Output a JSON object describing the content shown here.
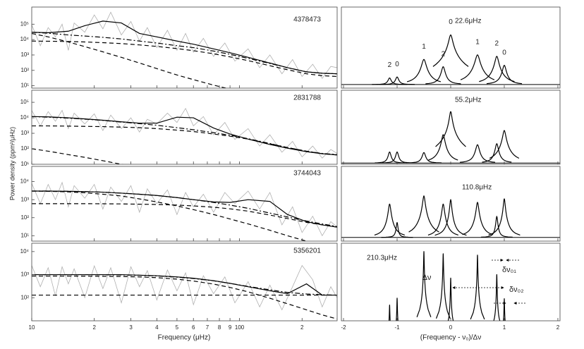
{
  "chart_data": [
    {
      "type": "line",
      "title": "4378473",
      "ylabel": "Power density (ppm²/μHz)",
      "xlim": [
        10,
        295
      ],
      "ylim": [
        7,
        1300000
      ],
      "yticks": [
        {
          "value": 10,
          "label": "10¹"
        },
        {
          "value": 100,
          "label": "10²"
        },
        {
          "value": 1000,
          "label": "10³"
        },
        {
          "value": 10000,
          "label": "10⁴"
        },
        {
          "value": 100000,
          "label": "10⁵"
        }
      ],
      "x": [
        10,
        12,
        15,
        18,
        22,
        27,
        33,
        40,
        50,
        60,
        75,
        90,
        110,
        140,
        170,
        210,
        250,
        295
      ],
      "series": [
        {
          "color": "#b0b0b0",
          "dash": "solid",
          "x": [
            10,
            11,
            12,
            13,
            14,
            15,
            16,
            18,
            20,
            22,
            24,
            27,
            30,
            33,
            36,
            40,
            45,
            50,
            55,
            60,
            67,
            75,
            85,
            95,
            110,
            125,
            140,
            160,
            180,
            200,
            225,
            250,
            275,
            295
          ],
          "values": [
            90000,
            4000,
            60000,
            15000,
            100000,
            2000,
            120000,
            30000,
            400000,
            50000,
            600000,
            20000,
            150000,
            8000,
            60000,
            3000,
            40000,
            2000,
            25000,
            1500,
            12000,
            800,
            6000,
            400,
            2500,
            150,
            1000,
            60,
            500,
            40,
            250,
            30,
            180,
            150
          ]
        },
        {
          "color": "#000000",
          "dash": "solid",
          "values": [
            30000,
            28000,
            35000,
            80000,
            160000,
            120000,
            25000,
            15000,
            8000,
            5000,
            2500,
            1400,
            700,
            300,
            150,
            80,
            65,
            60
          ]
        },
        {
          "color": "#000000",
          "dash": "dashdot",
          "values": [
            30000,
            26000,
            20000,
            17000,
            14000,
            11000,
            8000,
            6000,
            4000,
            3000,
            1800,
            1100,
            600,
            280,
            150,
            80,
            65,
            60
          ]
        },
        {
          "color": "#000000",
          "dash": "dash",
          "values": [
            25000,
            15000,
            7000,
            3500,
            1600,
            700,
            300,
            130,
            50,
            25,
            11,
            6,
            3,
            1.3,
            0.7,
            0.4,
            0.25,
            0.15
          ]
        },
        {
          "color": "#000000",
          "dash": "dash",
          "values": [
            8000,
            7800,
            7500,
            7000,
            6300,
            5500,
            4500,
            3600,
            2600,
            1900,
            1200,
            750,
            430,
            200,
            110,
            60,
            45,
            40
          ]
        }
      ]
    },
    {
      "type": "line",
      "title": "2831788",
      "xlim": [
        10,
        295
      ],
      "ylim": [
        10,
        600000
      ],
      "yticks": [
        {
          "value": 10,
          "label": "10¹"
        },
        {
          "value": 100,
          "label": "10²"
        },
        {
          "value": 1000,
          "label": "10³"
        },
        {
          "value": 10000,
          "label": "10⁴"
        },
        {
          "value": 100000,
          "label": "10⁵"
        }
      ],
      "x": [
        10,
        12,
        15,
        18,
        22,
        27,
        33,
        40,
        50,
        60,
        75,
        90,
        110,
        140,
        170,
        210,
        250,
        295
      ],
      "series": [
        {
          "color": "#b0b0b0",
          "dash": "solid",
          "x": [
            10,
            11,
            12,
            13,
            14,
            15,
            16,
            18,
            20,
            22,
            24,
            27,
            30,
            33,
            36,
            40,
            45,
            50,
            55,
            60,
            67,
            75,
            85,
            95,
            110,
            125,
            140,
            160,
            180,
            200,
            225,
            250,
            275,
            295
          ],
          "values": [
            30000,
            3000,
            25000,
            6000,
            30000,
            2000,
            20000,
            4000,
            18000,
            1500,
            15000,
            2000,
            10000,
            1200,
            8000,
            4000,
            20000,
            5000,
            40000,
            3000,
            12000,
            800,
            5000,
            400,
            2000,
            150,
            800,
            60,
            300,
            30,
            150,
            25,
            90,
            50
          ]
        },
        {
          "color": "#000000",
          "dash": "solid",
          "values": [
            12000,
            11500,
            10000,
            8500,
            7000,
            5500,
            4500,
            4500,
            11000,
            10000,
            2200,
            900,
            420,
            190,
            110,
            65,
            48,
            40
          ]
        },
        {
          "color": "#000000",
          "dash": "dashdot",
          "values": [
            12000,
            11000,
            9500,
            8200,
            6800,
            5300,
            4200,
            3300,
            2300,
            1700,
            1100,
            750,
            450,
            220,
            120,
            70,
            50,
            42
          ]
        },
        {
          "color": "#000000",
          "dash": "dash",
          "values": [
            3000,
            3000,
            2900,
            2800,
            2700,
            2500,
            2300,
            2000,
            1600,
            1300,
            900,
            650,
            420,
            210,
            120,
            70,
            48,
            40
          ]
        },
        {
          "color": "#000000",
          "dash": "dash",
          "values": [
            100,
            70,
            42,
            28,
            17,
            10,
            6,
            4,
            2.4,
            1.5,
            1,
            0.7,
            0.5,
            0.3,
            0.2,
            0.15,
            0.1,
            0.08
          ]
        }
      ]
    },
    {
      "type": "line",
      "title": "3744043",
      "xlim": [
        10,
        295
      ],
      "ylim": [
        5,
        70000
      ],
      "yticks": [
        {
          "value": 10,
          "label": "10¹"
        },
        {
          "value": 100,
          "label": "10²"
        },
        {
          "value": 1000,
          "label": "10³"
        },
        {
          "value": 10000,
          "label": "10⁴"
        }
      ],
      "x": [
        10,
        12,
        15,
        18,
        22,
        27,
        33,
        40,
        50,
        60,
        75,
        90,
        110,
        140,
        170,
        210,
        250,
        295
      ],
      "series": [
        {
          "color": "#b0b0b0",
          "dash": "solid",
          "x": [
            10,
            11,
            12,
            13,
            14,
            15,
            16,
            18,
            20,
            22,
            24,
            27,
            30,
            33,
            36,
            40,
            45,
            50,
            55,
            60,
            67,
            75,
            85,
            95,
            110,
            125,
            140,
            160,
            180,
            200,
            225,
            250,
            275,
            295
          ],
          "values": [
            8000,
            600,
            7000,
            1000,
            9000,
            400,
            6000,
            1200,
            7000,
            300,
            5000,
            800,
            6000,
            200,
            4000,
            600,
            3500,
            150,
            2500,
            400,
            2000,
            200,
            2500,
            600,
            3000,
            300,
            2500,
            40,
            400,
            15,
            120,
            10,
            60,
            30
          ]
        },
        {
          "color": "#000000",
          "dash": "solid",
          "values": [
            3000,
            3000,
            2900,
            2800,
            2600,
            2300,
            2000,
            1700,
            1300,
            1000,
            750,
            700,
            1000,
            800,
            150,
            60,
            40,
            30
          ]
        },
        {
          "color": "#000000",
          "dash": "dashdot",
          "values": [
            3000,
            3000,
            2900,
            2800,
            2600,
            2300,
            2000,
            1700,
            1300,
            1000,
            700,
            500,
            330,
            180,
            110,
            65,
            45,
            32
          ]
        },
        {
          "color": "#000000",
          "dash": "dash",
          "values": [
            600,
            600,
            600,
            600,
            590,
            580,
            560,
            540,
            500,
            450,
            380,
            310,
            230,
            140,
            90,
            55,
            40,
            30
          ]
        },
        {
          "color": "#000000",
          "dash": "dash",
          "values": [
            3000,
            2900,
            2700,
            2400,
            2000,
            1600,
            1100,
            750,
            450,
            280,
            150,
            85,
            45,
            20,
            10,
            5,
            3,
            2
          ]
        }
      ]
    },
    {
      "type": "line",
      "title": "5356201",
      "xlabel": "Frequency (μHz)",
      "xlim": [
        10,
        295
      ],
      "ylim": [
        10,
        23000
      ],
      "xticks": [
        10,
        {
          "value": 20,
          "label": "2"
        },
        {
          "value": 30,
          "label": "3"
        },
        {
          "value": 40,
          "label": "4"
        },
        {
          "value": 50,
          "label": "5"
        },
        {
          "value": 60,
          "label": "6"
        },
        {
          "value": 70,
          "label": "7"
        },
        {
          "value": 80,
          "label": "8"
        },
        {
          "value": 90,
          "label": "9"
        },
        100,
        {
          "value": 200,
          "label": "2"
        }
      ],
      "yticks": [
        {
          "value": 100,
          "label": "10²"
        },
        {
          "value": 1000,
          "label": "10³"
        },
        {
          "value": 10000,
          "label": "10⁴"
        }
      ],
      "x": [
        10,
        12,
        15,
        18,
        22,
        27,
        33,
        40,
        50,
        60,
        75,
        90,
        110,
        140,
        170,
        210,
        250,
        295
      ],
      "series": [
        {
          "color": "#b0b0b0",
          "dash": "solid",
          "x": [
            10,
            11,
            12,
            13,
            14,
            15,
            16,
            18,
            20,
            22,
            24,
            27,
            30,
            33,
            36,
            40,
            45,
            50,
            55,
            60,
            67,
            75,
            85,
            95,
            110,
            125,
            140,
            160,
            180,
            200,
            225,
            250,
            275,
            295
          ],
          "values": [
            2500,
            300,
            2000,
            120,
            2200,
            400,
            1800,
            100,
            2400,
            250,
            2000,
            60,
            2200,
            300,
            1500,
            80,
            1600,
            200,
            1200,
            50,
            900,
            150,
            800,
            60,
            500,
            40,
            350,
            30,
            300,
            2500,
            600,
            40,
            300,
            100
          ]
        },
        {
          "color": "#000000",
          "dash": "solid",
          "values": [
            1000,
            1000,
            1000,
            1000,
            1000,
            1000,
            950,
            900,
            800,
            700,
            550,
            420,
            300,
            200,
            150,
            400,
            130,
            130
          ]
        },
        {
          "color": "#000000",
          "dash": "dashdot",
          "values": [
            1000,
            1000,
            1000,
            1000,
            990,
            970,
            940,
            880,
            780,
            680,
            540,
            420,
            310,
            220,
            170,
            145,
            135,
            130
          ]
        },
        {
          "color": "#000000",
          "dash": "dash",
          "values": [
            130,
            130,
            130,
            130,
            130,
            130,
            130,
            130,
            130,
            130,
            130,
            130,
            130,
            130,
            130,
            130,
            130,
            130
          ]
        },
        {
          "color": "#000000",
          "dash": "dash",
          "values": [
            870,
            870,
            870,
            865,
            850,
            830,
            800,
            740,
            640,
            530,
            390,
            280,
            180,
            95,
            55,
            30,
            18,
            12
          ]
        }
      ]
    },
    {
      "type": "peaks",
      "title": "22.6μHz",
      "xlim": [
        -2.04,
        2.04
      ],
      "ylim": [
        7,
        1300000
      ],
      "color": "#000000",
      "background": 12,
      "x": [
        -1.14,
        -1.0,
        -0.5,
        -0.14,
        0,
        0.5,
        0.86,
        1.0
      ],
      "values": [
        20,
        25,
        500,
        160,
        20000,
        1000,
        800,
        200
      ],
      "widths": [
        0.03,
        0.03,
        0.035,
        0.03,
        0.03,
        0.035,
        0.03,
        0.03
      ],
      "labels": [
        "2",
        "0",
        "1",
        "2",
        "0",
        "1",
        "2",
        "0"
      ]
    },
    {
      "type": "peaks",
      "title": "55.2μHz",
      "xlim": [
        -2.04,
        2.04
      ],
      "ylim": [
        10,
        600000
      ],
      "color": "#000000",
      "background": 12,
      "x": [
        -1.14,
        -1.0,
        -0.5,
        -0.14,
        0,
        0.5,
        0.86,
        1.0
      ],
      "values": [
        50,
        50,
        45,
        800,
        25000,
        170,
        200,
        1500
      ],
      "widths": [
        0.025,
        0.025,
        0.03,
        0.025,
        0.02,
        0.03,
        0.025,
        0.025
      ]
    },
    {
      "type": "peaks",
      "title": "110.8μHz",
      "xlim": [
        -2.04,
        2.04
      ],
      "ylim": [
        5,
        70000
      ],
      "color": "#000000",
      "background": 8,
      "x": [
        -1.14,
        -1.0,
        -0.5,
        -0.14,
        0,
        0.5,
        0.86,
        1.0
      ],
      "values": [
        560,
        46,
        1600,
        560,
        1000,
        700,
        110,
        1100
      ],
      "widths": [
        0.02,
        0.015,
        0.02,
        0.02,
        0.015,
        0.02,
        0.015,
        0.015
      ]
    },
    {
      "type": "peaks",
      "title": "210.3μHz",
      "xlabel": "(Frequency - ν₀)/Δν",
      "xlim": [
        -2.04,
        2.04
      ],
      "ylim": [
        10,
        23000
      ],
      "color": "#000000",
      "background": 5,
      "xticks": [
        -2,
        -1,
        0,
        1,
        2
      ],
      "x": [
        -1.14,
        -1.0,
        -0.5,
        -0.14,
        0,
        0.5,
        0.86,
        1.0
      ],
      "values": [
        43,
        90,
        10000,
        8000,
        700,
        7000,
        1000,
        85
      ],
      "widths": [
        0.004,
        0.004,
        0.004,
        0.004,
        0.004,
        0.004,
        0.004,
        0.004
      ],
      "annotations": [
        "δν₀₁",
        "Δν",
        "δν₀₂"
      ]
    }
  ]
}
